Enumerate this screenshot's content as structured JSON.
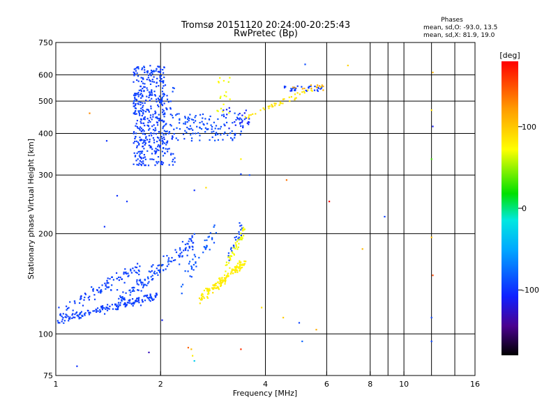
{
  "chart_data": {
    "type": "scatter",
    "title": "Tromsø 20151120 20:24:00-20:25:43",
    "subtitle": "RwPretec (Bp)",
    "xlabel": "Frequency [MHz]",
    "ylabel": "Stationary phase Virtual Height [km]",
    "x_scale": "log",
    "y_scale": "log",
    "xlim": [
      1,
      16
    ],
    "ylim": [
      75,
      750
    ],
    "x_ticks": [
      1,
      2,
      4,
      6,
      8,
      10,
      16
    ],
    "x_tick_labels": [
      "1",
      "2",
      "4",
      "6",
      "8",
      "10",
      "16"
    ],
    "y_ticks": [
      75,
      100,
      200,
      300,
      400,
      500,
      600,
      750
    ],
    "y_tick_labels": [
      "75",
      "100",
      "200",
      "300",
      "400",
      "500",
      "600",
      "750"
    ],
    "grid": true,
    "info": {
      "heading": "Phases",
      "line1": "mean, sd,O: -93.0, 13.5",
      "line2": "mean, sd,X: 81.9, 19.0"
    },
    "colorbar": {
      "label": "[deg]",
      "range": [
        -180,
        180
      ],
      "ticks": [
        100,
        0,
        -100
      ],
      "tick_labels": [
        "100",
        "0",
        "-100"
      ]
    },
    "point_color_encoding": "phase in deg",
    "series": [
      {
        "segments": [
          {
            "x": [
              1.02,
              1.96
            ],
            "y": [
              110,
              130
            ],
            "phase": -95,
            "n": 160,
            "spread": 0.04
          },
          {
            "x": [
              1.02,
              1.75
            ],
            "y": [
              115,
              160
            ],
            "phase": -95,
            "n": 100,
            "spread": 0.08
          },
          {
            "x": [
              1.5,
              2.5
            ],
            "y": [
              125,
              190
            ],
            "phase": -92,
            "n": 130,
            "spread": 0.09
          },
          {
            "x": [
              2.3,
              2.9
            ],
            "y": [
              140,
              210
            ],
            "phase": -85,
            "n": 40,
            "spread": 0.1
          },
          {
            "x": [
              3.1,
              3.45
            ],
            "y": [
              165,
              215
            ],
            "phase": -92,
            "n": 25,
            "spread": 0.06
          }
        ],
        "clusters": [
          {
            "x": [
              1.67,
              2.05
            ],
            "y": [
              320,
              640
            ],
            "phase": -95,
            "n": 420
          },
          {
            "x": [
              2.03,
              2.2
            ],
            "y": [
              320,
              560
            ],
            "phase": -93,
            "n": 60
          },
          {
            "x": [
              2.2,
              3.5
            ],
            "y": [
              380,
              460
            ],
            "phase": -90,
            "n": 120
          },
          {
            "x": [
              3.0,
              3.6
            ],
            "y": [
              410,
              480
            ],
            "phase": -110,
            "n": 25
          },
          {
            "x": [
              4.5,
              5.8
            ],
            "y": [
              535,
              555
            ],
            "phase": -98,
            "n": 30
          }
        ]
      },
      {
        "segments": [
          {
            "x": [
              2.6,
              3.5
            ],
            "y": [
              128,
              165
            ],
            "phase": 80,
            "n": 150,
            "spread": 0.05
          },
          {
            "x": [
              3.0,
              3.5
            ],
            "y": [
              150,
              210
            ],
            "phase": 70,
            "n": 40,
            "spread": 0.06
          },
          {
            "x": [
              3.5,
              5.8
            ],
            "y": [
              450,
              555
            ],
            "phase": 85,
            "n": 45,
            "spread": 0.03
          }
        ],
        "clusters": [
          {
            "x": [
              2.9,
              3.2
            ],
            "y": [
              460,
              600
            ],
            "phase": 70,
            "n": 18
          },
          {
            "x": [
              4.8,
              5.9
            ],
            "y": [
              535,
              560
            ],
            "phase": 115,
            "n": 12
          }
        ]
      }
    ],
    "scattered_points": [
      {
        "x": 1.25,
        "y": 460,
        "phase": 130
      },
      {
        "x": 1.4,
        "y": 380,
        "phase": -100
      },
      {
        "x": 1.38,
        "y": 210,
        "phase": -100
      },
      {
        "x": 1.85,
        "y": 88,
        "phase": -130
      },
      {
        "x": 2.4,
        "y": 91,
        "phase": 140
      },
      {
        "x": 2.45,
        "y": 90,
        "phase": 110
      },
      {
        "x": 2.47,
        "y": 86,
        "phase": 80
      },
      {
        "x": 2.5,
        "y": 83,
        "phase": -30
      },
      {
        "x": 1.15,
        "y": 80,
        "phase": -100
      },
      {
        "x": 3.4,
        "y": 90,
        "phase": 160
      },
      {
        "x": 4.6,
        "y": 290,
        "phase": 140
      },
      {
        "x": 6.1,
        "y": 250,
        "phase": 175
      },
      {
        "x": 8.8,
        "y": 225,
        "phase": -95
      },
      {
        "x": 12.0,
        "y": 335,
        "phase": 30
      },
      {
        "x": 12.1,
        "y": 420,
        "phase": -120
      },
      {
        "x": 12.0,
        "y": 470,
        "phase": 90
      },
      {
        "x": 12.1,
        "y": 610,
        "phase": 110
      },
      {
        "x": 12.0,
        "y": 195,
        "phase": 100
      },
      {
        "x": 12.1,
        "y": 150,
        "phase": 150
      },
      {
        "x": 12.0,
        "y": 112,
        "phase": -95
      },
      {
        "x": 12.0,
        "y": 95,
        "phase": -90
      },
      {
        "x": 5.1,
        "y": 95,
        "phase": -80
      },
      {
        "x": 5.0,
        "y": 108,
        "phase": -100
      },
      {
        "x": 6.9,
        "y": 640,
        "phase": 100
      },
      {
        "x": 5.2,
        "y": 645,
        "phase": -95
      },
      {
        "x": 7.6,
        "y": 180,
        "phase": 110
      },
      {
        "x": 4.5,
        "y": 112,
        "phase": 105
      },
      {
        "x": 5.6,
        "y": 103,
        "phase": 110
      },
      {
        "x": 1.5,
        "y": 260,
        "phase": -100
      },
      {
        "x": 1.6,
        "y": 250,
        "phase": -95
      },
      {
        "x": 2.5,
        "y": 270,
        "phase": -95
      },
      {
        "x": 2.7,
        "y": 275,
        "phase": 90
      },
      {
        "x": 3.4,
        "y": 302,
        "phase": -95
      },
      {
        "x": 3.6,
        "y": 300,
        "phase": -95
      },
      {
        "x": 3.4,
        "y": 335,
        "phase": 80
      },
      {
        "x": 2.15,
        "y": 165,
        "phase": -90
      },
      {
        "x": 3.9,
        "y": 120,
        "phase": 85
      },
      {
        "x": 2.02,
        "y": 110,
        "phase": -110
      }
    ]
  }
}
